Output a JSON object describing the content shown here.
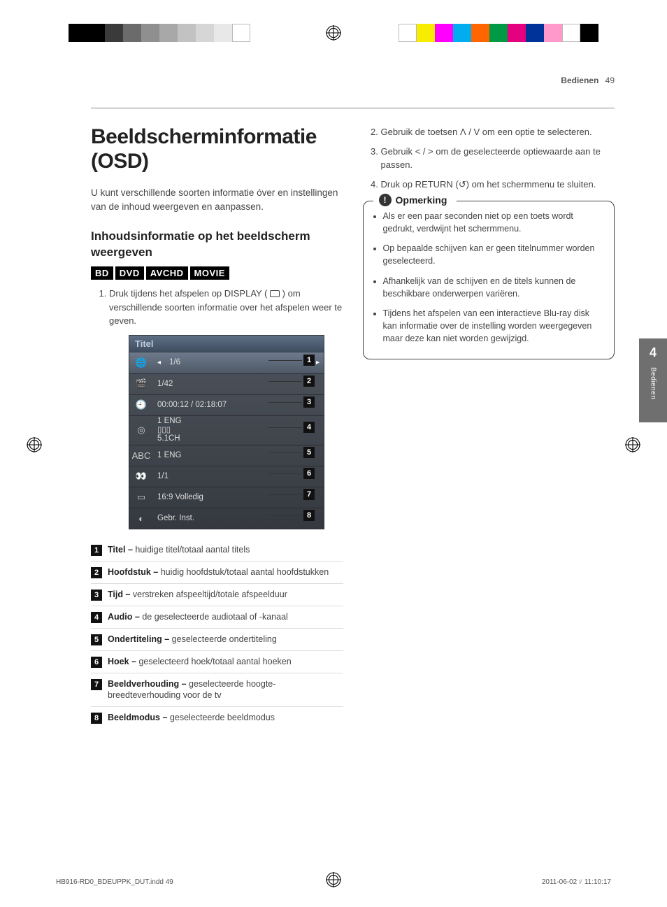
{
  "print": {
    "left_swatches": [
      "#000000",
      "#000000",
      "#3a3a3a",
      "#6b6b6b",
      "#8f8f8f",
      "#a8a8a8",
      "#c2c2c2",
      "#d6d6d6",
      "#e8e8e8",
      "#ffffff"
    ],
    "right_swatches": [
      "#ffffff",
      "#f8ec00",
      "#ff00ff",
      "#00aeef",
      "#ff6600",
      "#009944",
      "#e4007f",
      "#003399",
      "#ff99cc",
      "#ffffff",
      "#000000"
    ]
  },
  "header": {
    "section": "Bedienen",
    "page": "49"
  },
  "left": {
    "h1": "Beeldscherminformatie (OSD)",
    "intro": "U kunt verschillende soorten informatie óver en instellingen van de inhoud weergeven en aanpassen.",
    "h2": "Inhoudsinformatie op het beeldscherm weergeven",
    "badges": [
      "BD",
      "DVD",
      "AVCHD",
      "MOVIE"
    ],
    "step1_pre": "Druk tijdens het afspelen op DISPLAY (",
    "step1_post": ") om verschillende soorten informatie over het afspelen weer te geven.",
    "osd": {
      "title": "Titel",
      "rows": [
        {
          "icon": "🌐",
          "val": "1/6",
          "selected": true,
          "arrows": true
        },
        {
          "icon": "🎬",
          "val": "1/42"
        },
        {
          "icon": "🕘",
          "val": "00:00:12 / 02:18:07"
        },
        {
          "icon": "◎",
          "val": "1 ENG\n▯▯▯\n5.1CH",
          "tall": true
        },
        {
          "icon": "ABC",
          "val": "1 ENG"
        },
        {
          "icon": "👀",
          "val": "1/1"
        },
        {
          "icon": "▭",
          "val": "16:9 Volledig"
        },
        {
          "icon": "◐",
          "val": "Gebr. Inst."
        }
      ]
    },
    "legend": [
      {
        "n": "1",
        "bold": "Titel –",
        "text": " huidige titel/totaal aantal titels"
      },
      {
        "n": "2",
        "bold": "Hoofdstuk –",
        "text": " huidig hoofdstuk/totaal aantal hoofdstukken"
      },
      {
        "n": "3",
        "bold": "Tijd –",
        "text": " verstreken afspeeltijd/totale afspeelduur"
      },
      {
        "n": "4",
        "bold": "Audio –",
        "text": " de geselecteerde audiotaal of -kanaal"
      },
      {
        "n": "5",
        "bold": "Ondertiteling –",
        "text": " geselecteerde ondertiteling"
      },
      {
        "n": "6",
        "bold": "Hoek –",
        "text": " geselecteerd hoek/totaal aantal hoeken"
      },
      {
        "n": "7",
        "bold": "Beeldverhouding –",
        "text": " geselecteerde hoogte-breedteverhouding voor de tv"
      },
      {
        "n": "8",
        "bold": "Beeldmodus –",
        "text": " geselecteerde beeldmodus"
      }
    ]
  },
  "right": {
    "steps": [
      "Gebruik de toetsen Ʌ / V om een optie te selecteren.",
      "Gebruik < / > om de geselecteerde optiewaarde aan te passen.",
      "Druk op RETURN (↺) om het schermmenu te sluiten."
    ],
    "note_label": "Opmerking",
    "notes": [
      "Als er een paar seconden niet op een toets wordt gedrukt, verdwijnt het schermmenu.",
      "Op bepaalde schijven kan er geen titelnummer worden geselecteerd.",
      "Afhankelijk van de schijven en de titels kunnen de beschikbare onderwerpen variëren.",
      "Tijdens het afspelen van een interactieve Blu-ray disk kan informatie over de instelling worden weergegeven maar deze kan niet worden gewijzigd."
    ]
  },
  "sidetab": {
    "num": "4",
    "label": "Bedienen"
  },
  "footer": {
    "left": "HB916-RD0_BDEUPPK_DUT.indd   49",
    "right": "2011-06-02   ᜠ 11:10:17"
  }
}
